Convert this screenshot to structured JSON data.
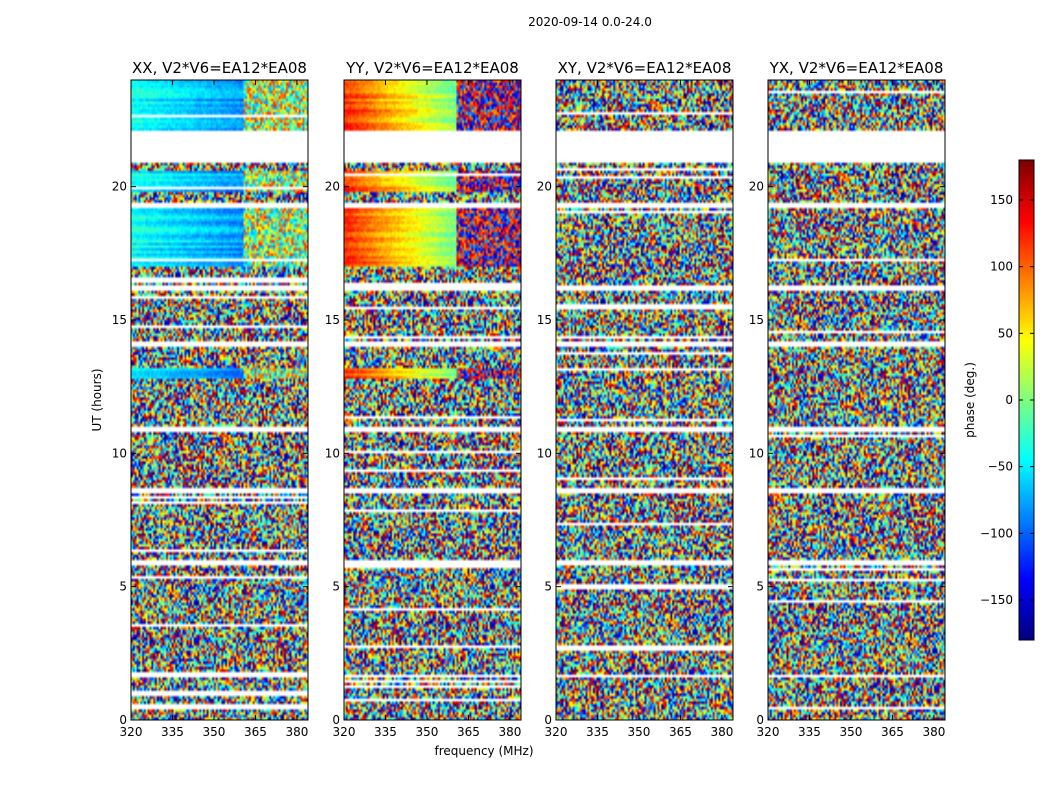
{
  "chart_data": {
    "type": "heatmap",
    "suptitle": "2020-09-14 0.0-24.0",
    "xlabel": "frequency (MHz)",
    "ylabel": "UT (hours)",
    "xlim": [
      320,
      384
    ],
    "ylim": [
      0,
      24
    ],
    "xticks": [
      320,
      335,
      350,
      365,
      380
    ],
    "yticks": [
      0,
      5,
      10,
      15,
      20
    ],
    "panels": [
      {
        "title": "XX, V2*V6=EA12*EA08",
        "structure": "coherent",
        "base_phase": -40
      },
      {
        "title": "YY, V2*V6=EA12*EA08",
        "structure": "coherent",
        "base_phase": 120
      },
      {
        "title": "XY, V2*V6=EA12*EA08",
        "structure": "noisy",
        "base_phase": 0
      },
      {
        "title": "YX, V2*V6=EA12*EA08",
        "structure": "noisy",
        "base_phase": -100
      }
    ],
    "colorbar": {
      "label": "phase (deg.)",
      "range": [
        -180,
        180
      ],
      "ticks": [
        150,
        100,
        50,
        0,
        -50,
        -100,
        -150
      ],
      "tick_labels": [
        "150",
        "100",
        "50",
        "0",
        "−50",
        "−100",
        "−150"
      ],
      "colormap": "jet"
    },
    "coherent_ut_ranges": [
      [
        17.0,
        19.2
      ],
      [
        19.8,
        20.6
      ],
      [
        22.0,
        24.0
      ],
      [
        12.8,
        13.2
      ]
    ],
    "flagged_ut_ranges": [
      [
        20.9,
        22.1
      ],
      [
        19.2,
        19.4
      ],
      [
        16.1,
        16.3
      ],
      [
        8.5,
        8.7
      ],
      [
        5.8,
        6.0
      ],
      [
        1.6,
        1.7
      ],
      [
        10.8,
        11.0
      ],
      [
        14.0,
        14.2
      ]
    ]
  }
}
